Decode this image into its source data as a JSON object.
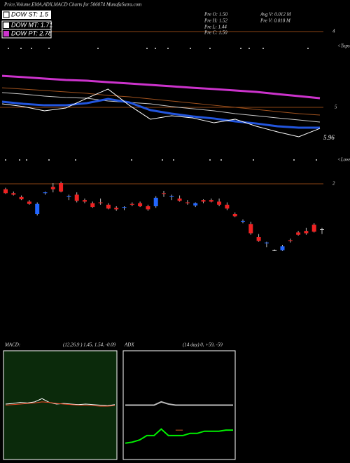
{
  "header": {
    "title": "Price,Volume,EMA,ADX,MACD Charts for 506074  MunafaSutra.com"
  },
  "legend": [
    "DOW ST: 1.5",
    "DOW MT: 1.71",
    "DOW PT: 2.78"
  ],
  "info": [
    "Pre  O: 1.50",
    "Pre  H: 1.52",
    "Pre  L: 1.44",
    "Pre  C: 1.50",
    "Avg V: 0.012  M",
    "Pre  V: 0.018  M"
  ],
  "labels": {
    "top_right": "4",
    "tops": "<Tops",
    "mid_right": "5",
    "last": "5.96",
    "lows": "<Lows",
    "low_right": "2"
  },
  "chart_data": [
    {
      "type": "line",
      "ylim": [
        0,
        10
      ],
      "series": [
        {
          "color": "#cc33cc",
          "width": 3,
          "values": [
            6.29,
            6.18,
            6.06,
            5.94,
            5.88,
            5.76,
            5.65,
            5.53,
            5.41,
            5.29,
            5.18,
            5.06,
            4.94,
            4.76,
            4.59,
            4.41
          ]
        },
        {
          "color": "#a0521e",
          "width": 1,
          "values": [
            5.29,
            5.18,
            5.06,
            4.94,
            4.82,
            4.65,
            4.53,
            4.35,
            4.18,
            4.0,
            3.82,
            3.65,
            3.47,
            3.29,
            3.12,
            3.0
          ]
        },
        {
          "color": "#c8c8c8",
          "width": 1,
          "values": [
            4.88,
            4.76,
            4.59,
            4.47,
            4.41,
            4.18,
            4.06,
            3.94,
            3.71,
            3.53,
            3.35,
            3.12,
            2.94,
            2.76,
            2.59,
            2.41
          ]
        },
        {
          "color": "#2255dd",
          "width": 3,
          "values": [
            4.12,
            3.94,
            3.82,
            3.82,
            4.0,
            4.35,
            4.06,
            3.41,
            3.12,
            2.88,
            2.71,
            2.47,
            2.29,
            2.06,
            1.94,
            1.94
          ]
        },
        {
          "color": "#ffffff",
          "width": 1,
          "values": [
            3.94,
            3.71,
            3.35,
            3.59,
            4.41,
            5.18,
            3.82,
            2.65,
            2.94,
            2.76,
            2.35,
            2.65,
            2.06,
            1.59,
            1.18,
            1.88
          ]
        }
      ]
    },
    {
      "type": "candlestick",
      "ylim": [
        1.2,
        2.2
      ],
      "colors": {
        "up": "#2266ff",
        "down": "#ee2222",
        "flat": "#ffffff"
      },
      "candles": [
        [
          2.02,
          2.04,
          1.96,
          1.97
        ],
        [
          1.97,
          1.99,
          1.94,
          1.95
        ],
        [
          1.92,
          1.94,
          1.88,
          1.89
        ],
        [
          1.86,
          1.88,
          1.82,
          1.83
        ],
        [
          1.7,
          1.85,
          1.68,
          1.83
        ],
        [
          1.97,
          1.99,
          1.95,
          1.98
        ],
        [
          2.05,
          2.1,
          1.98,
          2.02
        ],
        [
          2.1,
          2.12,
          1.98,
          1.99
        ],
        [
          1.92,
          1.95,
          1.88,
          1.93
        ],
        [
          1.95,
          1.98,
          1.85,
          1.87
        ],
        [
          1.88,
          1.9,
          1.84,
          1.86
        ],
        [
          1.84,
          1.86,
          1.78,
          1.79
        ],
        [
          1.85,
          1.9,
          1.82,
          1.84
        ],
        [
          1.82,
          1.84,
          1.76,
          1.77
        ],
        [
          1.78,
          1.8,
          1.74,
          1.76
        ],
        [
          1.78,
          1.8,
          1.75,
          1.79
        ],
        [
          1.83,
          1.85,
          1.8,
          1.82
        ],
        [
          1.84,
          1.86,
          1.79,
          1.8
        ],
        [
          1.8,
          1.82,
          1.74,
          1.76
        ],
        [
          1.8,
          1.93,
          1.78,
          1.91
        ],
        [
          1.97,
          2.0,
          1.92,
          1.96
        ],
        [
          1.92,
          1.95,
          1.88,
          1.93
        ],
        [
          1.9,
          1.94,
          1.86,
          1.87
        ],
        [
          1.85,
          1.88,
          1.82,
          1.84
        ],
        [
          1.81,
          1.85,
          1.79,
          1.84
        ],
        [
          1.88,
          1.89,
          1.84,
          1.86
        ],
        [
          1.88,
          1.9,
          1.85,
          1.86
        ],
        [
          1.86,
          1.9,
          1.8,
          1.82
        ],
        [
          1.82,
          1.85,
          1.75,
          1.77
        ],
        [
          1.7,
          1.72,
          1.66,
          1.67
        ],
        [
          1.6,
          1.63,
          1.58,
          1.61
        ],
        [
          1.57,
          1.6,
          1.43,
          1.45
        ],
        [
          1.4,
          1.44,
          1.34,
          1.35
        ],
        [
          1.32,
          1.34,
          1.27,
          1.33
        ],
        [
          1.23,
          1.24,
          1.22,
          1.23
        ],
        [
          1.23,
          1.3,
          1.22,
          1.28
        ],
        [
          1.36,
          1.38,
          1.33,
          1.35
        ],
        [
          1.46,
          1.48,
          1.42,
          1.43
        ],
        [
          1.48,
          1.52,
          1.43,
          1.45
        ],
        [
          1.56,
          1.58,
          1.46,
          1.47
        ],
        [
          1.5,
          1.52,
          1.44,
          1.5
        ]
      ]
    },
    {
      "type": "line",
      "title": "MACD:",
      "subtitle": "(12,26,9 ) 1.45, 1.54, -0.09",
      "background": "#0b2a0b",
      "ylim": [
        -10,
        10
      ],
      "series": [
        {
          "color": "#ffffff",
          "width": 1,
          "values": [
            0.2,
            0.3,
            0.5,
            0.4,
            0.6,
            1.2,
            0.5,
            0.2,
            0.3,
            0.2,
            0.1,
            0.2,
            0.1,
            0.0,
            -0.1,
            0.1
          ]
        },
        {
          "color": "#ee4422",
          "width": 1,
          "values": [
            0.0,
            0.1,
            0.2,
            0.3,
            0.4,
            0.6,
            0.5,
            0.3,
            0.2,
            0.1,
            0.0,
            0.0,
            -0.1,
            -0.2,
            -0.2,
            -0.1
          ]
        }
      ]
    },
    {
      "type": "line",
      "title": "ADX",
      "subtitle": "(14  day) 0, +59, -59",
      "background": "#000000",
      "ylim": [
        0,
        100
      ],
      "series": [
        {
          "color": "#bbbbbb",
          "width": 2,
          "values": [
            50,
            50,
            50,
            50,
            50,
            53,
            51,
            50,
            50,
            50,
            50,
            50,
            50,
            50,
            50,
            50
          ]
        },
        {
          "color": "#cc5522",
          "width": 1,
          "values": [
            null,
            null,
            null,
            null,
            null,
            null,
            null,
            27,
            27,
            null,
            null,
            null,
            null,
            null,
            null,
            null
          ]
        },
        {
          "color": "#00ee00",
          "width": 2,
          "values": [
            15,
            16,
            18,
            22,
            22,
            28,
            22,
            22,
            22,
            24,
            24,
            26,
            26,
            26,
            27,
            27
          ]
        }
      ]
    }
  ]
}
